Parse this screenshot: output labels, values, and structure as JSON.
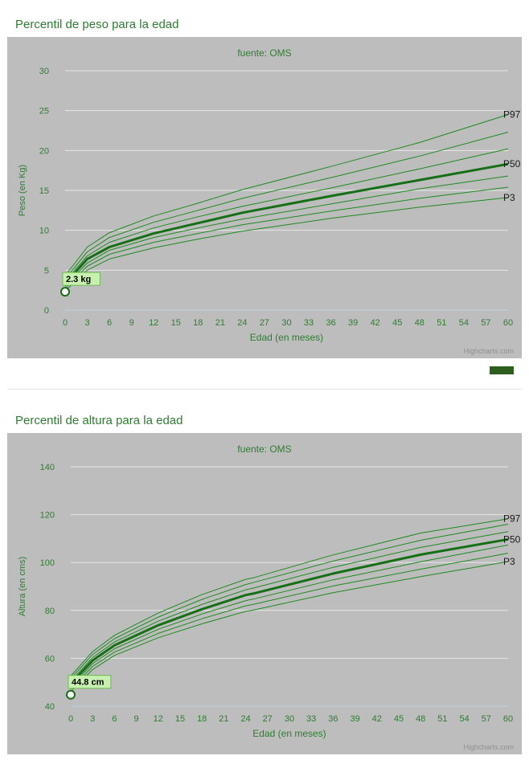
{
  "sections": [
    {
      "title": "Percentil de peso para la edad",
      "chart_data": {
        "type": "line",
        "subtitle": "fuente: OMS",
        "xlabel": "Edad (en meses)",
        "ylabel": "Peso (en Kg)",
        "xlim": [
          0,
          60
        ],
        "ylim": [
          0,
          30
        ],
        "x_ticks": [
          0,
          3,
          6,
          9,
          12,
          15,
          18,
          21,
          24,
          27,
          30,
          33,
          36,
          39,
          42,
          45,
          48,
          51,
          54,
          57,
          60
        ],
        "y_ticks": [
          0,
          5,
          10,
          15,
          20,
          25,
          30
        ],
        "x": [
          0,
          3,
          6,
          12,
          18,
          24,
          36,
          48,
          60
        ],
        "series": [
          {
            "name": "P3",
            "values": [
              2.4,
              5.0,
              6.4,
              7.8,
              8.9,
              9.9,
              11.5,
              12.9,
              14.1
            ]
          },
          {
            "name": "",
            "values": [
              2.7,
              5.5,
              7.0,
              8.5,
              9.6,
              10.7,
              12.4,
              14.0,
              15.4
            ]
          },
          {
            "name": "",
            "values": [
              3.0,
              5.9,
              7.5,
              9.1,
              10.3,
              11.4,
              13.3,
              15.2,
              16.8
            ]
          },
          {
            "name": "P50",
            "values": [
              3.3,
              6.4,
              7.9,
              9.6,
              10.9,
              12.2,
              14.3,
              16.3,
              18.3
            ]
          },
          {
            "name": "",
            "values": [
              3.6,
              6.8,
              8.5,
              10.3,
              11.7,
              13.0,
              15.3,
              17.7,
              20.2
            ]
          },
          {
            "name": "",
            "values": [
              3.9,
              7.3,
              9.1,
              11.0,
              12.5,
              14.0,
              16.6,
              19.3,
              22.3
            ]
          },
          {
            "name": "P97",
            "values": [
              4.3,
              7.9,
              9.7,
              11.8,
              13.4,
              15.1,
              18.0,
              21.0,
              24.5
            ]
          }
        ],
        "highlight_series": "P50",
        "patient_point": {
          "x": 0,
          "y": 2.3,
          "label": "2.3 kg"
        },
        "credit": "Highcharts.com",
        "grid": true
      }
    },
    {
      "title": "Percentil de altura para la edad",
      "chart_data": {
        "type": "line",
        "subtitle": "fuente: OMS",
        "xlabel": "Edad (en meses)",
        "ylabel": "Altura (en cms)",
        "xlim": [
          0,
          60
        ],
        "ylim": [
          40,
          140
        ],
        "x_ticks": [
          0,
          3,
          6,
          9,
          12,
          15,
          18,
          21,
          24,
          27,
          30,
          33,
          36,
          39,
          42,
          45,
          48,
          51,
          54,
          57,
          60
        ],
        "y_ticks": [
          40,
          60,
          80,
          100,
          120,
          140
        ],
        "x": [
          0,
          3,
          6,
          12,
          18,
          24,
          25,
          36,
          48,
          60
        ],
        "series": [
          {
            "name": "P3",
            "values": [
              46.1,
              55.3,
              61.2,
              68.6,
              74.4,
              79.6,
              80.1,
              87.4,
              94.1,
              100.4
            ]
          },
          {
            "name": "",
            "values": [
              47.2,
              56.6,
              62.6,
              70.4,
              76.5,
              81.9,
              82.5,
              90.2,
              97.2,
              103.9
            ]
          },
          {
            "name": "",
            "values": [
              48.3,
              57.8,
              64.0,
              72.1,
              78.5,
              84.1,
              84.7,
              92.8,
              100.3,
              107.3
            ]
          },
          {
            "name": "P50",
            "values": [
              49.4,
              59.1,
              65.4,
              73.8,
              80.5,
              86.4,
              87.0,
              95.4,
              103.3,
              109.7
            ]
          },
          {
            "name": "",
            "values": [
              50.4,
              60.3,
              66.8,
              75.5,
              82.5,
              88.6,
              89.3,
              98.0,
              106.3,
              112.9
            ]
          },
          {
            "name": "",
            "values": [
              51.5,
              61.6,
              68.2,
              77.2,
              84.6,
              90.8,
              91.6,
              100.6,
              109.3,
              116.0
            ]
          },
          {
            "name": "P97",
            "values": [
              52.6,
              62.8,
              69.6,
              78.9,
              86.6,
              93.0,
              93.6,
              103.2,
              112.3,
              118.3
            ]
          }
        ],
        "highlight_series": "P50",
        "patient_point": {
          "x": 0,
          "y": 44.8,
          "label": "44.8 cm"
        },
        "credit": "Highcharts.com",
        "grid": true
      }
    }
  ],
  "colors": {
    "line": "#1f8a1f",
    "line_bold": "#157015",
    "text": "#2e7d32",
    "plot_bg": "#bdbdbd",
    "grid": "#e8e8e8",
    "label_bg": "#c8f0b0",
    "legend_swatch": "#2e5e1e"
  }
}
